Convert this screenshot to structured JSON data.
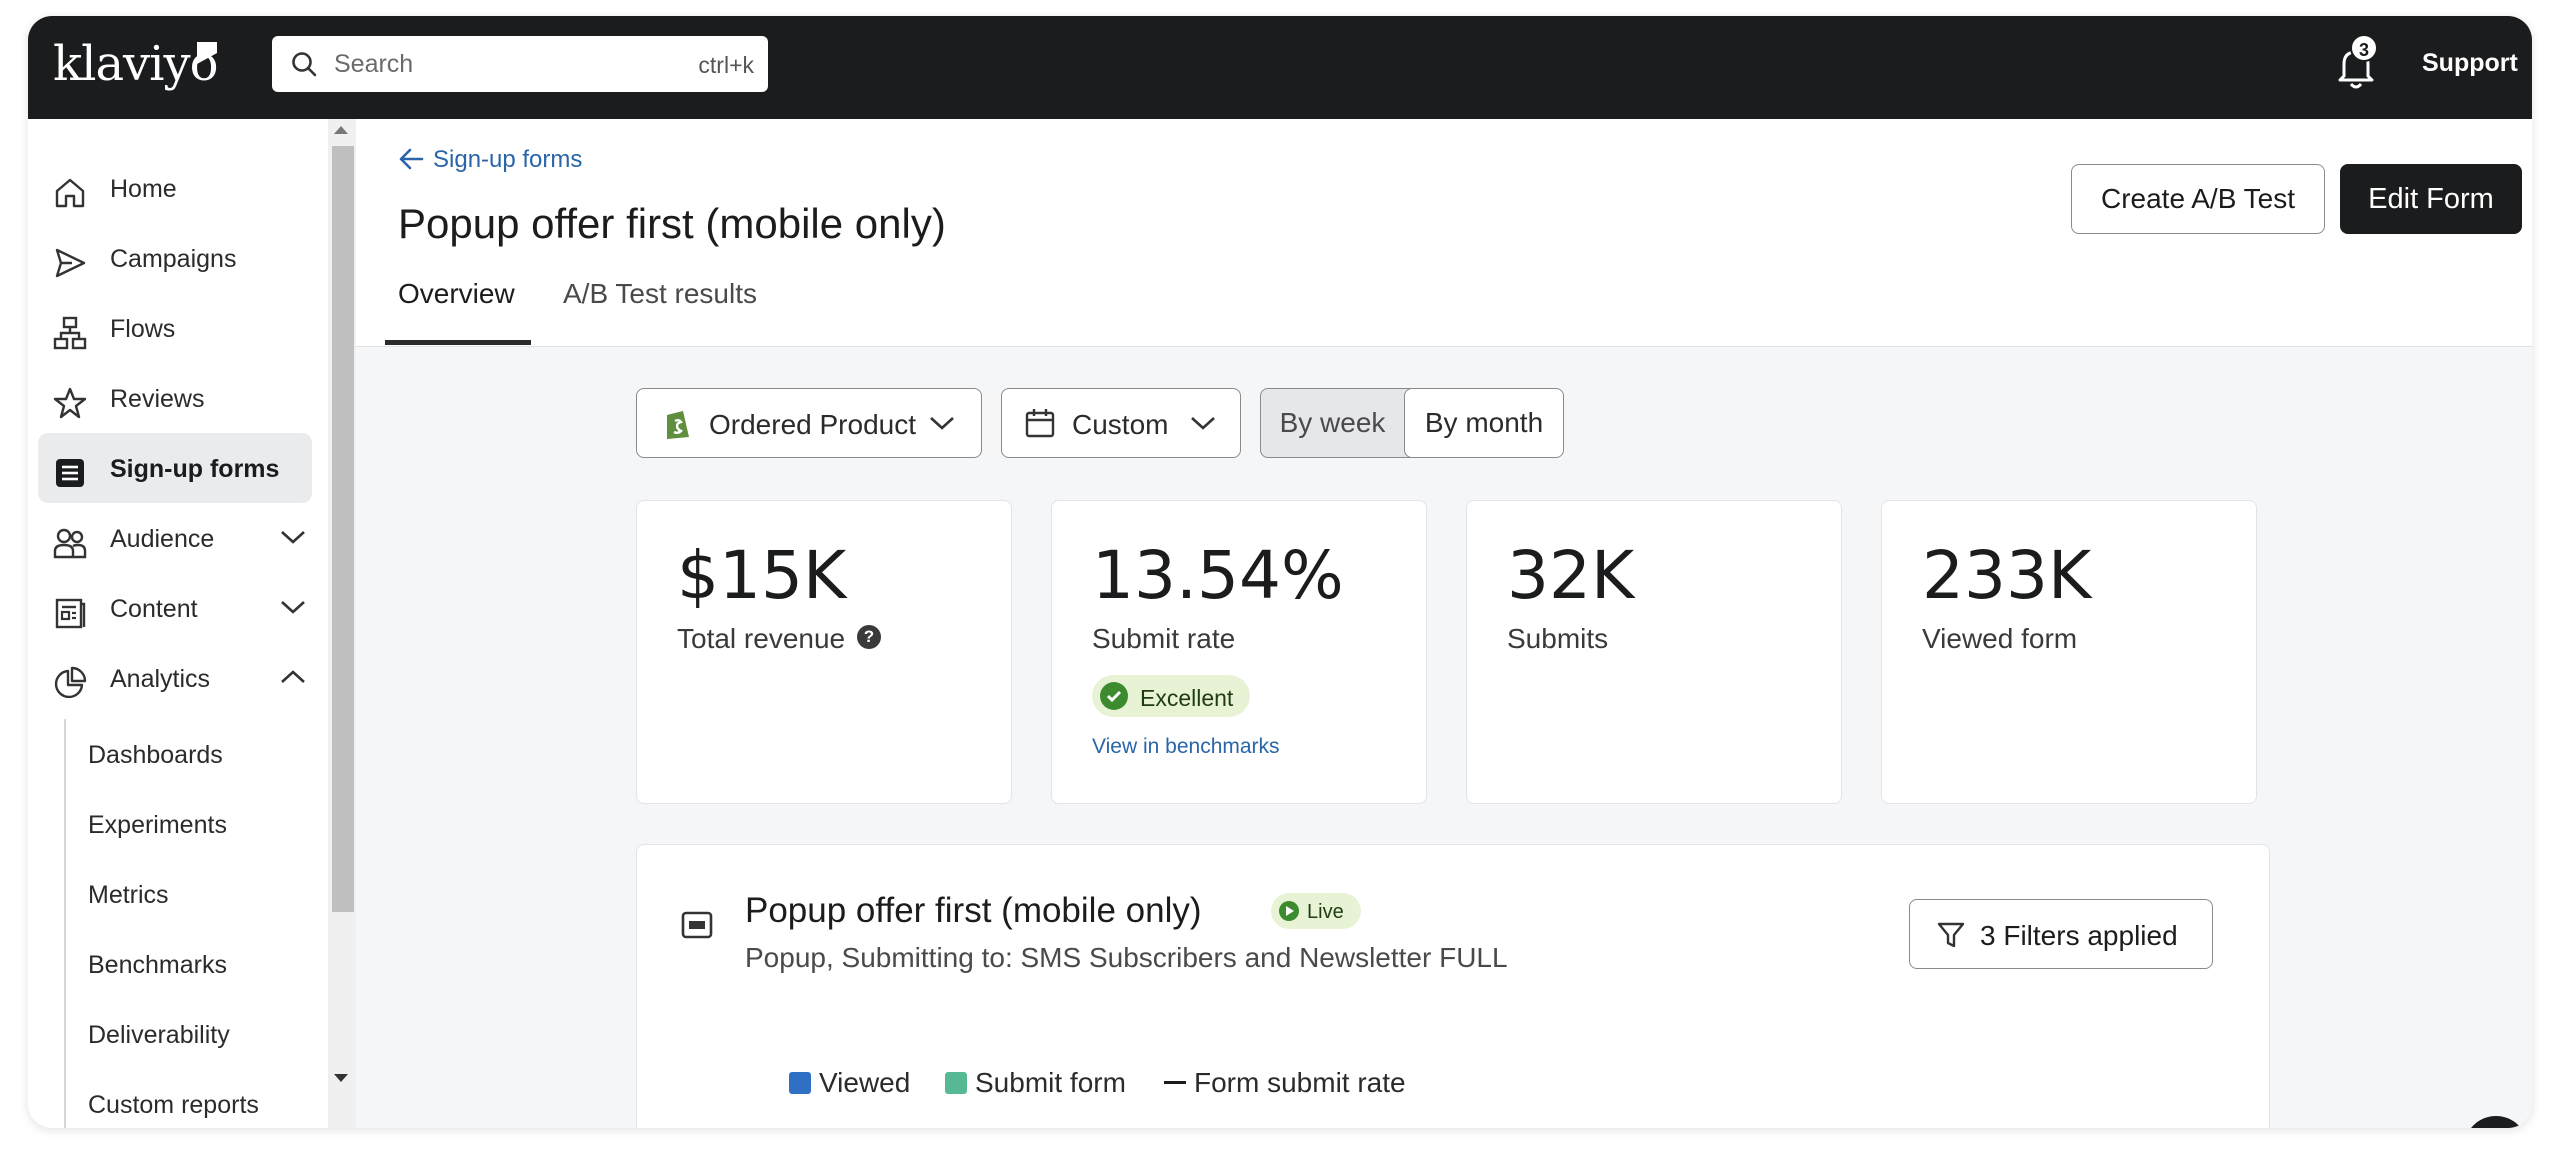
{
  "brand": {
    "logo_text": "klaviyo"
  },
  "topbar": {
    "search_placeholder": "Search",
    "search_shortcut": "ctrl+k",
    "notification_count": "3",
    "support_label": "Support"
  },
  "sidebar": {
    "items": [
      {
        "label": "Home",
        "icon": "home-icon"
      },
      {
        "label": "Campaigns",
        "icon": "send-icon"
      },
      {
        "label": "Flows",
        "icon": "flow-icon"
      },
      {
        "label": "Reviews",
        "icon": "star-icon"
      },
      {
        "label": "Sign-up forms",
        "icon": "form-icon",
        "active": true
      },
      {
        "label": "Audience",
        "icon": "people-icon",
        "expanded": false
      },
      {
        "label": "Content",
        "icon": "content-icon",
        "expanded": false
      },
      {
        "label": "Analytics",
        "icon": "pie-chart-icon",
        "expanded": true
      }
    ],
    "analytics_sub": [
      "Dashboards",
      "Experiments",
      "Metrics",
      "Benchmarks",
      "Deliverability",
      "Custom reports"
    ]
  },
  "header": {
    "back_label": "Sign-up forms",
    "title": "Popup offer first (mobile only)",
    "tabs": [
      {
        "label": "Overview",
        "active": true
      },
      {
        "label": "A/B Test results",
        "active": false
      }
    ],
    "create_ab_label": "Create A/B Test",
    "edit_form_label": "Edit Form"
  },
  "filters": {
    "metric": "Ordered Product",
    "date_range": "Custom",
    "granularity": [
      {
        "label": "By week",
        "selected": false
      },
      {
        "label": "By month",
        "selected": true
      }
    ]
  },
  "metrics": {
    "revenue": {
      "value": "$15K",
      "label": "Total revenue"
    },
    "submit_rate": {
      "value": "13.54%",
      "label": "Submit rate",
      "badge": "Excellent",
      "link": "View in benchmarks"
    },
    "submits": {
      "value": "32K",
      "label": "Submits"
    },
    "viewed": {
      "value": "233K",
      "label": "Viewed form"
    }
  },
  "form_card": {
    "title": "Popup offer first (mobile only)",
    "status": "Live",
    "subtitle": "Popup, Submitting to: SMS Subscribers and Newsletter FULL",
    "filters_label": "3 Filters applied",
    "legend": [
      {
        "label": "Viewed",
        "color": "#2f6fc4"
      },
      {
        "label": "Submit form",
        "color": "#57b894"
      },
      {
        "label": "Form submit rate",
        "color": "#1b1c1d"
      }
    ]
  },
  "colors": {
    "topbar": "#1b1c1d",
    "link": "#2965a8",
    "success": "#3d8b2f"
  }
}
